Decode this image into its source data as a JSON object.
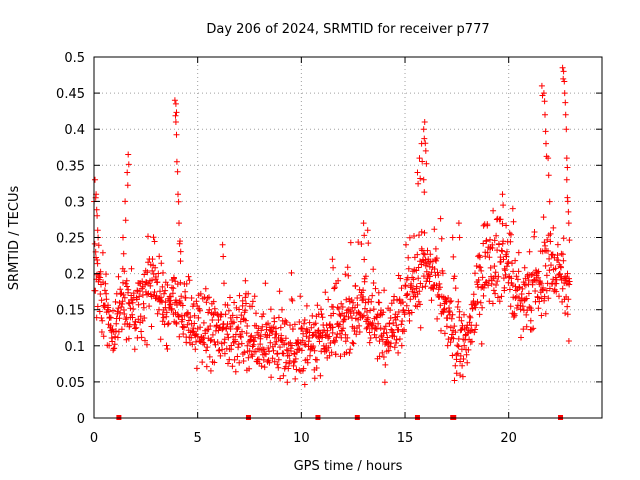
{
  "chart_data": {
    "type": "scatter",
    "title": "Day 206 of 2024, SRMTID for receiver p777",
    "xlabel": "GPS time / hours",
    "ylabel": "SRMTID / TECUs",
    "xlim": [
      0,
      24.5
    ],
    "ylim": [
      0,
      0.5
    ],
    "x_ticks": [
      0,
      5,
      10,
      15,
      20
    ],
    "y_ticks": [
      0,
      0.05,
      0.1,
      0.15,
      0.2,
      0.25,
      0.3,
      0.35,
      0.4,
      0.45,
      0.5
    ],
    "x_tick_labels": [
      "0",
      "5",
      "10",
      "15",
      "20"
    ],
    "y_tick_labels": [
      "0",
      "0.05",
      "0.1",
      "0.15",
      "0.2",
      "0.25",
      "0.3",
      "0.35",
      "0.4",
      "0.45",
      "0.5"
    ],
    "grid": true,
    "marker": "+",
    "color": "#ff0000",
    "profile": [
      [
        0.0,
        0.22
      ],
      [
        0.5,
        0.16
      ],
      [
        1.0,
        0.12
      ],
      [
        1.5,
        0.16
      ],
      [
        2.0,
        0.15
      ],
      [
        2.5,
        0.17
      ],
      [
        3.0,
        0.18
      ],
      [
        3.5,
        0.15
      ],
      [
        4.0,
        0.16
      ],
      [
        4.5,
        0.14
      ],
      [
        5.0,
        0.12
      ],
      [
        5.5,
        0.12
      ],
      [
        6.0,
        0.12
      ],
      [
        6.5,
        0.12
      ],
      [
        7.0,
        0.12
      ],
      [
        7.5,
        0.11
      ],
      [
        8.0,
        0.11
      ],
      [
        8.5,
        0.1
      ],
      [
        9.0,
        0.1
      ],
      [
        9.5,
        0.09
      ],
      [
        10.0,
        0.1
      ],
      [
        10.5,
        0.11
      ],
      [
        11.0,
        0.12
      ],
      [
        11.5,
        0.12
      ],
      [
        12.0,
        0.13
      ],
      [
        12.5,
        0.15
      ],
      [
        13.0,
        0.16
      ],
      [
        13.5,
        0.13
      ],
      [
        14.0,
        0.12
      ],
      [
        14.5,
        0.13
      ],
      [
        15.0,
        0.16
      ],
      [
        15.5,
        0.19
      ],
      [
        16.0,
        0.2
      ],
      [
        16.5,
        0.19
      ],
      [
        17.0,
        0.14
      ],
      [
        17.5,
        0.1
      ],
      [
        18.0,
        0.1
      ],
      [
        18.5,
        0.18
      ],
      [
        19.0,
        0.21
      ],
      [
        19.5,
        0.23
      ],
      [
        20.0,
        0.21
      ],
      [
        20.5,
        0.15
      ],
      [
        21.0,
        0.17
      ],
      [
        21.5,
        0.18
      ],
      [
        22.0,
        0.22
      ],
      [
        22.5,
        0.2
      ],
      [
        22.9,
        0.16
      ]
    ],
    "outliers": [
      [
        0.05,
        0.33
      ],
      [
        0.1,
        0.31
      ],
      [
        0.15,
        0.28
      ],
      [
        0.2,
        0.25
      ],
      [
        1.4,
        0.25
      ],
      [
        1.5,
        0.3
      ],
      [
        1.6,
        0.34
      ],
      [
        1.65,
        0.365
      ],
      [
        3.9,
        0.44
      ],
      [
        3.95,
        0.435
      ],
      [
        3.95,
        0.41
      ],
      [
        4.0,
        0.355
      ],
      [
        4.05,
        0.31
      ],
      [
        4.1,
        0.27
      ],
      [
        4.15,
        0.245
      ],
      [
        15.6,
        0.34
      ],
      [
        15.7,
        0.36
      ],
      [
        15.8,
        0.38
      ],
      [
        15.9,
        0.4
      ],
      [
        15.95,
        0.41
      ],
      [
        16.0,
        0.37
      ],
      [
        21.6,
        0.46
      ],
      [
        21.7,
        0.45
      ],
      [
        21.75,
        0.42
      ],
      [
        21.8,
        0.38
      ],
      [
        21.9,
        0.36
      ],
      [
        22.6,
        0.485
      ],
      [
        22.65,
        0.48
      ],
      [
        22.7,
        0.45
      ],
      [
        22.75,
        0.42
      ],
      [
        22.8,
        0.36
      ],
      [
        22.8,
        0.33
      ],
      [
        22.85,
        0.3
      ],
      [
        22.9,
        0.27
      ],
      [
        19.7,
        0.31
      ],
      [
        20.2,
        0.29
      ],
      [
        13.0,
        0.27
      ],
      [
        13.2,
        0.26
      ],
      [
        11.5,
        0.22
      ],
      [
        6.2,
        0.24
      ],
      [
        7.3,
        0.19
      ],
      [
        17.6,
        0.27
      ],
      [
        17.3,
        0.25
      ],
      [
        15.9,
        0.33
      ]
    ],
    "gap_markers_x": [
      1.2,
      7.45,
      10.8,
      12.7,
      15.6,
      17.3,
      17.35,
      22.5
    ]
  }
}
